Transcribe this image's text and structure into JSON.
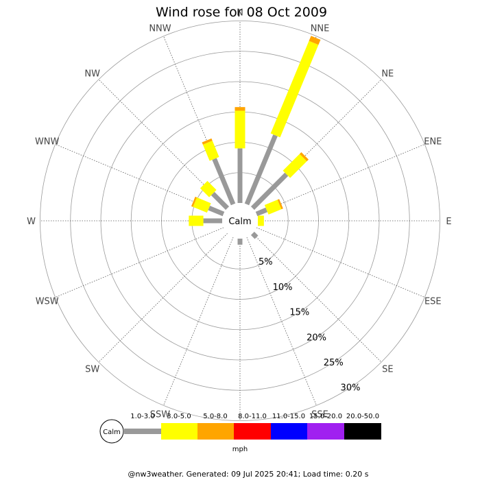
{
  "chart_data": {
    "type": "wind-rose",
    "title": "Wind rose for 08 Oct 2009",
    "directions": [
      "N",
      "NNE",
      "NE",
      "ENE",
      "E",
      "ESE",
      "SE",
      "SSE",
      "S",
      "SSW",
      "SW",
      "WSW",
      "W",
      "WNW",
      "NW",
      "NNW"
    ],
    "ring_labels": [
      "5%",
      "10%",
      "15%",
      "20%",
      "25%",
      "30%"
    ],
    "ring_values": [
      5,
      10,
      15,
      20,
      25,
      30
    ],
    "r_max": 30,
    "calm_label": "Calm",
    "speed_bins": [
      {
        "label": "1.0-3.0",
        "color": "#999999"
      },
      {
        "label": "3.0-5.0",
        "color": "#ffff00"
      },
      {
        "label": "5.0-8.0",
        "color": "#ffa500"
      },
      {
        "label": "8.0-11.0",
        "color": "#ff0000"
      },
      {
        "label": "11.0-15.0",
        "color": "#0000ff"
      },
      {
        "label": "15.0-20.0",
        "color": "#a020f0"
      },
      {
        "label": "20.0-50.0",
        "color": "#000000"
      }
    ],
    "unit": "mph",
    "series": [
      {
        "direction": "N",
        "values": [
          9.0,
          6.2,
          0.6,
          0,
          0,
          0,
          0
        ]
      },
      {
        "direction": "NNE",
        "values": [
          12.3,
          16.5,
          0.9,
          0,
          0,
          0,
          0
        ]
      },
      {
        "direction": "NE",
        "values": [
          7.9,
          3.9,
          0.4,
          0,
          0,
          0,
          0
        ]
      },
      {
        "direction": "ENE",
        "values": [
          1.8,
          2.3,
          0.3,
          0,
          0,
          0,
          0
        ]
      },
      {
        "direction": "E",
        "values": [
          0,
          1.0,
          0,
          0,
          0,
          0,
          0
        ]
      },
      {
        "direction": "ESE",
        "values": [
          0,
          0,
          0,
          0,
          0,
          0,
          0
        ]
      },
      {
        "direction": "SE",
        "values": [
          0.9,
          0,
          0,
          0,
          0,
          0,
          0
        ]
      },
      {
        "direction": "SSE",
        "values": [
          0,
          0,
          0,
          0,
          0,
          0,
          0
        ]
      },
      {
        "direction": "S",
        "values": [
          1.0,
          0,
          0,
          0,
          0,
          0,
          0
        ]
      },
      {
        "direction": "SSW",
        "values": [
          0,
          0,
          0,
          0,
          0,
          0,
          0
        ]
      },
      {
        "direction": "SW",
        "values": [
          0,
          0,
          0,
          0,
          0,
          0,
          0
        ]
      },
      {
        "direction": "WSW",
        "values": [
          0,
          0,
          0,
          0,
          0,
          0,
          0
        ]
      },
      {
        "direction": "W",
        "values": [
          3.1,
          2.4,
          0,
          0,
          0,
          0,
          0
        ]
      },
      {
        "direction": "WNW",
        "values": [
          2.6,
          2.5,
          0.3,
          0,
          0,
          0,
          0
        ]
      },
      {
        "direction": "NW",
        "values": [
          3.4,
          2.1,
          0,
          0,
          0,
          0,
          0
        ]
      },
      {
        "direction": "NNW",
        "values": [
          8.1,
          2.9,
          0.4,
          0,
          0,
          0,
          0
        ]
      }
    ],
    "grid": true,
    "legend_position": "bottom"
  },
  "footer": "@nw3weather. Generated: 09 Jul 2025 20:41; Load time: 0.20 s"
}
